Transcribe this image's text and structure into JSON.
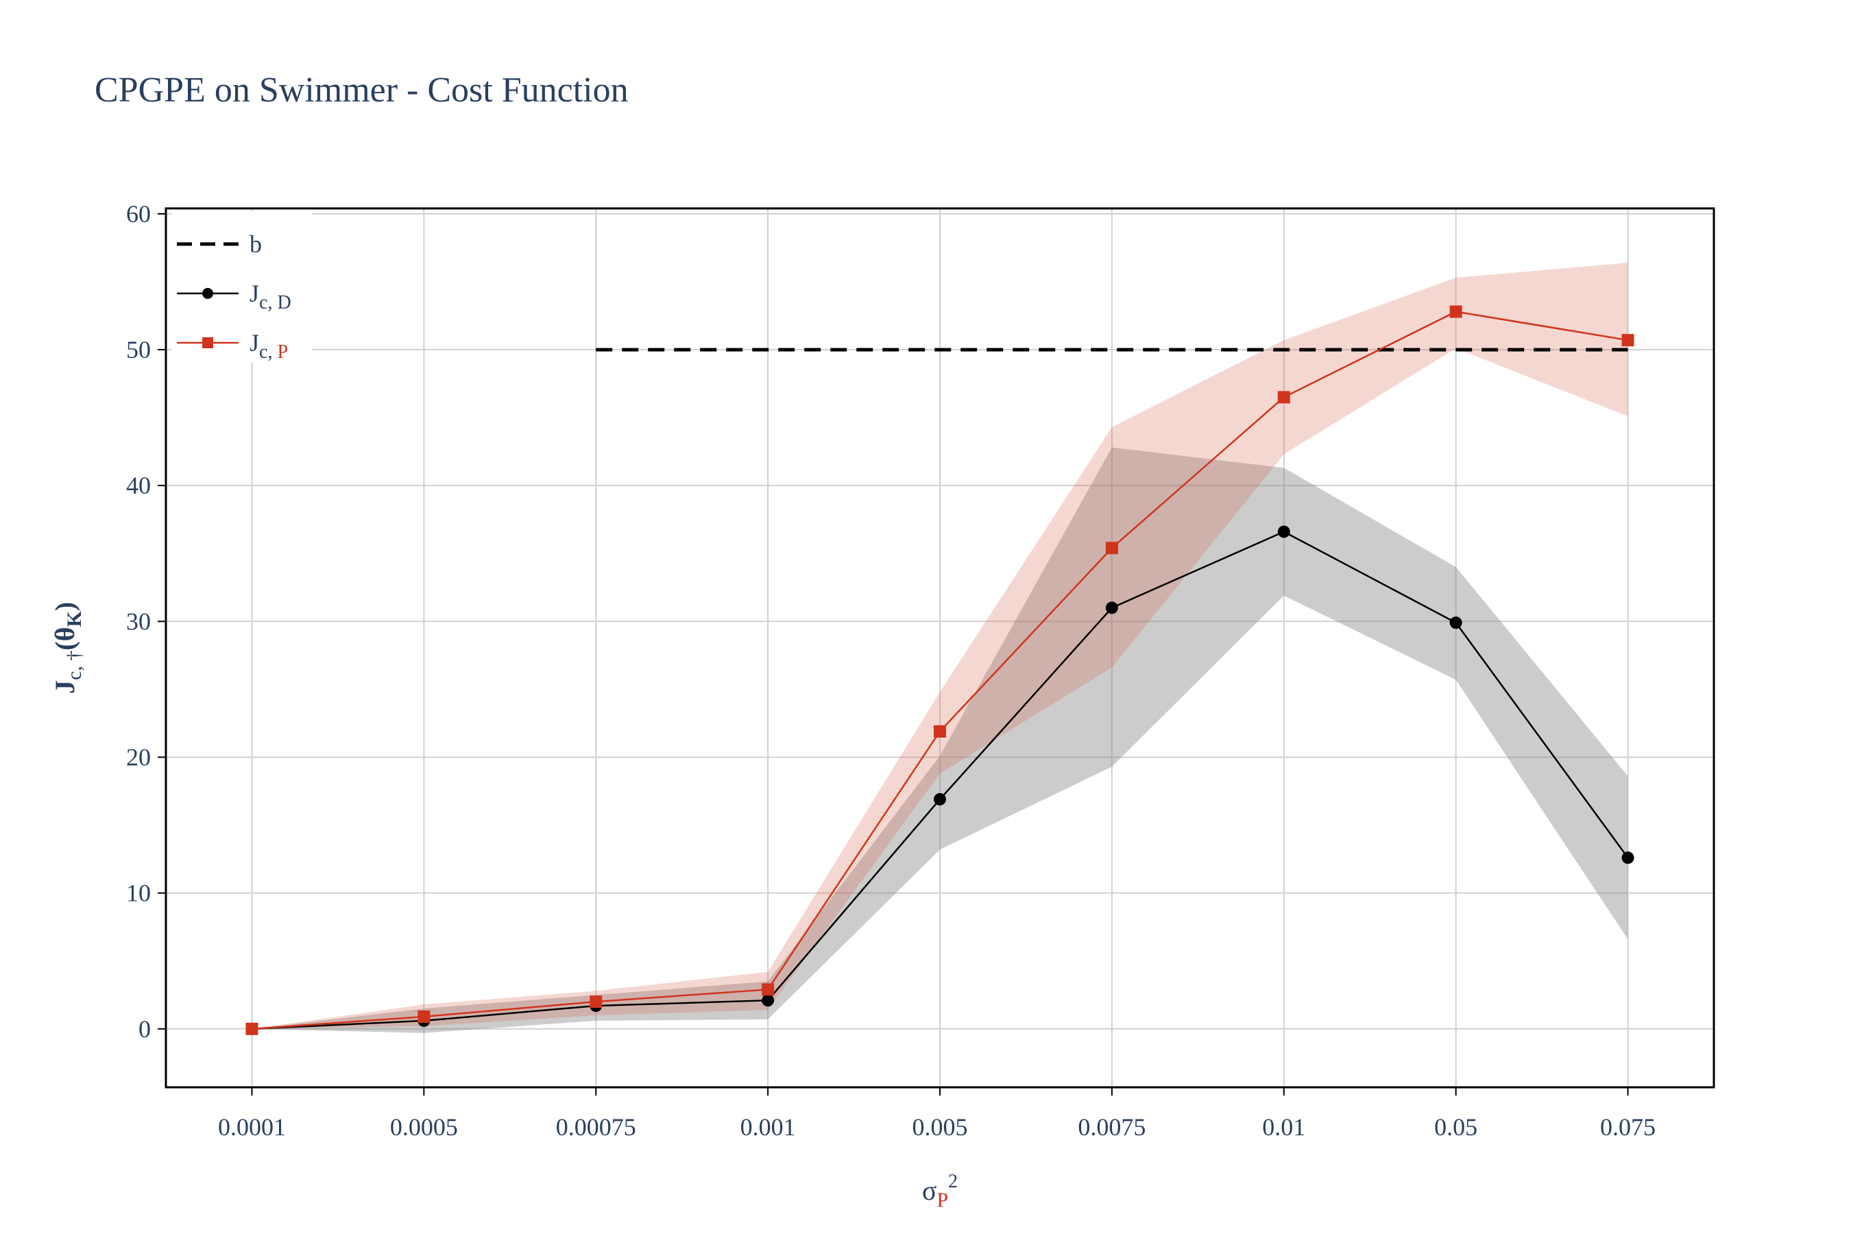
{
  "chart_data": {
    "type": "line",
    "title": "CPGPE on Swimmer - Cost Function",
    "xlabel": {
      "base": "σ",
      "sub": "P",
      "sup": "2"
    },
    "ylabel": {
      "base": "J",
      "sub": "c, †",
      "arg": "(θ",
      "arg_sub": "K",
      "arg_close": ")"
    },
    "x_type": "category",
    "categories": [
      "0.0001",
      "0.0005",
      "0.00075",
      "0.001",
      "0.005",
      "0.0075",
      "0.01",
      "0.05",
      "0.075"
    ],
    "ylim": [
      -4.3,
      60.4
    ],
    "yticks": [
      0,
      10,
      20,
      30,
      40,
      50,
      60
    ],
    "grid": true,
    "legend_position": "top-left",
    "series": [
      {
        "name": "b",
        "legend_base": "b",
        "legend_sub": "",
        "style": "dashed",
        "color": "#000000",
        "values": [
          null,
          null,
          50,
          50,
          50,
          50,
          50,
          50,
          50
        ]
      },
      {
        "name": "J_c,D",
        "legend_base": "J",
        "legend_sub": "c, D",
        "style": "line+circle",
        "color": "#000000",
        "band_color": "rgba(128,128,128,0.40)",
        "values": [
          0.0,
          0.6,
          1.7,
          2.1,
          16.9,
          31.0,
          36.6,
          29.9,
          12.6
        ],
        "lower": [
          0.0,
          -0.3,
          0.6,
          0.7,
          13.2,
          19.3,
          31.9,
          25.7,
          6.6
        ],
        "upper": [
          0.0,
          1.5,
          2.5,
          3.5,
          20.1,
          42.8,
          41.3,
          34.0,
          18.6
        ]
      },
      {
        "name": "J_c,P",
        "legend_base": "J",
        "legend_sub": "c, P",
        "style": "line+square",
        "color": "#d0341d",
        "band_color": "rgba(214,95,72,0.25)",
        "values": [
          0.0,
          0.9,
          2.0,
          2.9,
          21.9,
          35.4,
          46.5,
          52.8,
          50.7
        ],
        "lower": [
          0.0,
          0.2,
          1.0,
          1.4,
          18.8,
          26.6,
          42.3,
          50.1,
          45.1
        ],
        "upper": [
          0.0,
          1.8,
          2.8,
          4.2,
          24.8,
          44.3,
          50.7,
          55.3,
          56.4
        ]
      }
    ]
  }
}
